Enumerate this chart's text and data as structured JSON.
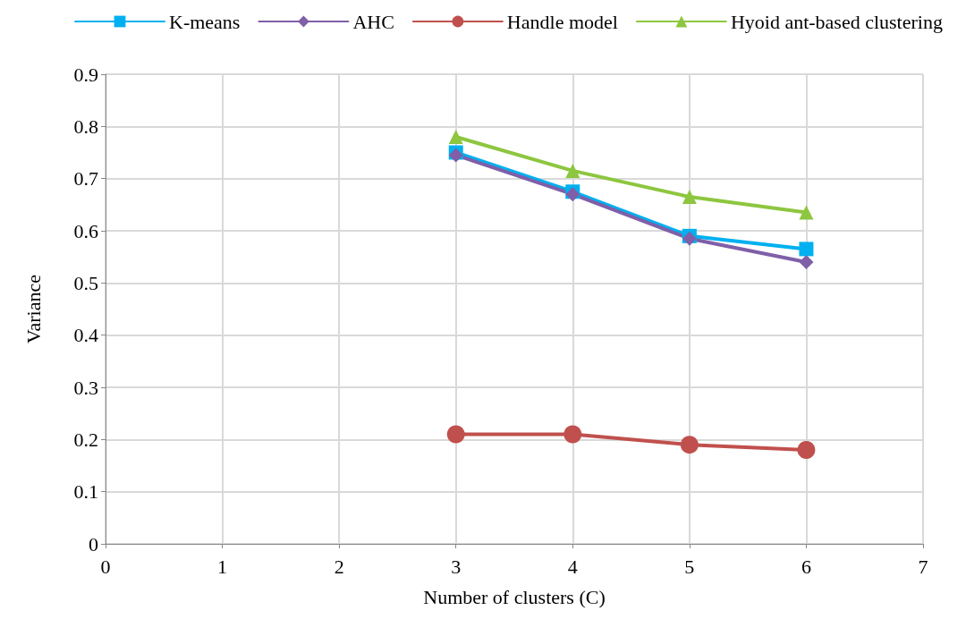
{
  "chart_data": {
    "type": "line",
    "xlabel": "Number of clusters (C)",
    "ylabel": "Variance",
    "x": [
      3,
      4,
      5,
      6
    ],
    "xlim": [
      0,
      7
    ],
    "xticks": [
      0,
      1,
      2,
      3,
      4,
      5,
      6,
      7
    ],
    "ylim": [
      0,
      0.9
    ],
    "yticks": [
      0,
      0.1,
      0.2,
      0.3,
      0.4,
      0.5,
      0.6,
      0.7,
      0.8,
      0.9
    ],
    "grid": true,
    "legend": "top",
    "line_style": "solid",
    "series": [
      {
        "name": "K-means",
        "color": "#00b0f0",
        "marker": "square",
        "values": [
          0.75,
          0.675,
          0.59,
          0.565
        ]
      },
      {
        "name": "AHC",
        "color": "#7f5fa8",
        "marker": "diamond",
        "values": [
          0.745,
          0.67,
          0.585,
          0.54
        ]
      },
      {
        "name": "Handle model",
        "color": "#c0504d",
        "marker": "circle",
        "values": [
          0.21,
          0.21,
          0.19,
          0.18
        ]
      },
      {
        "name": "Hyoid ant-based clustering",
        "color": "#8dc63f",
        "marker": "triangle",
        "values": [
          0.78,
          0.715,
          0.665,
          0.635
        ]
      }
    ]
  }
}
